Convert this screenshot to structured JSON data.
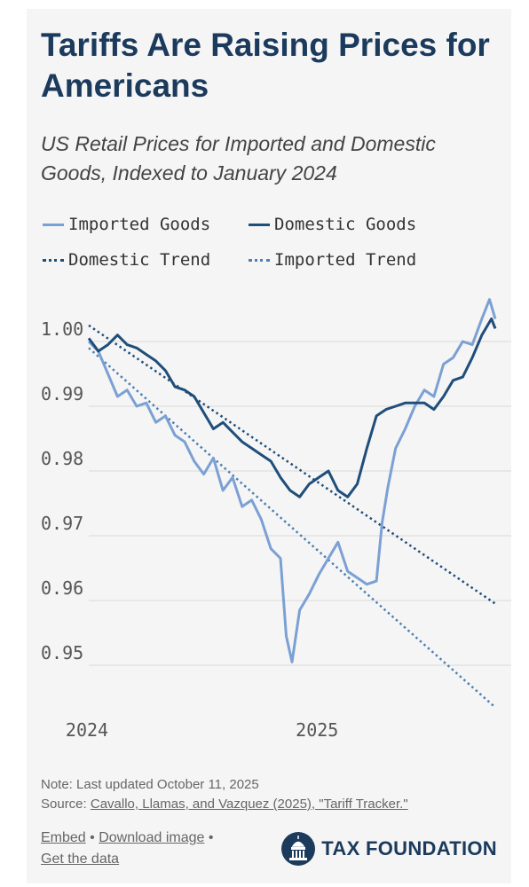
{
  "header": {
    "title": "Tariffs Are Raising Prices for Americans",
    "subtitle": "US Retail Prices for Imported and Domestic Goods, Indexed to January 2024"
  },
  "legend": {
    "items": [
      {
        "label": "Imported Goods",
        "style": "solid",
        "color": "#7ba0d4"
      },
      {
        "label": "Domestic Goods",
        "style": "solid",
        "color": "#1f4e7a"
      },
      {
        "label": "Domestic Trend",
        "style": "dotted",
        "color": "#1f4e7a"
      },
      {
        "label": "Imported Trend",
        "style": "dotted",
        "color": "#4f7fb3"
      }
    ]
  },
  "chart_data": {
    "type": "line",
    "title": "Tariffs Are Raising Prices for Americans",
    "subtitle": "US Retail Prices for Imported and Domestic Goods, Indexed to January 2024",
    "x_ticks": [
      "2024",
      "2025"
    ],
    "y_ticks": [
      "1.00",
      "0.99",
      "0.98",
      "0.97",
      "0.96",
      "0.95"
    ],
    "ylim": [
      0.943,
      1.006
    ],
    "grid": "horizontal",
    "legend_position": "top",
    "x_unit": "months since January 2024",
    "series": [
      {
        "name": "Imported Goods",
        "style": "solid",
        "color": "#7ba0d4",
        "x": [
          0,
          0.5,
          1,
          1.5,
          2,
          2.5,
          3,
          3.5,
          4,
          4.5,
          5,
          5.5,
          6,
          6.5,
          7,
          7.5,
          8,
          8.5,
          9,
          9.5,
          10,
          10.3,
          10.6,
          11,
          11.5,
          12,
          12.5,
          13,
          13.5,
          14,
          14.5,
          15,
          15.3,
          15.6,
          16,
          16.5,
          17,
          17.5,
          18,
          18.5,
          19,
          19.5,
          20,
          20.5,
          20.9,
          21.2
        ],
        "values": [
          1.0,
          0.9985,
          0.995,
          0.9915,
          0.9925,
          0.99,
          0.9905,
          0.9875,
          0.9885,
          0.9855,
          0.9845,
          0.9815,
          0.9795,
          0.982,
          0.977,
          0.979,
          0.9745,
          0.9755,
          0.9725,
          0.968,
          0.9665,
          0.9545,
          0.9505,
          0.9585,
          0.961,
          0.964,
          0.9665,
          0.969,
          0.9645,
          0.9635,
          0.9625,
          0.963,
          0.972,
          0.9775,
          0.9835,
          0.9865,
          0.99,
          0.9925,
          0.9915,
          0.9965,
          0.9975,
          1.0,
          0.9995,
          1.0035,
          1.0065,
          1.0035
        ]
      },
      {
        "name": "Domestic Goods",
        "style": "solid",
        "color": "#1f4e7a",
        "x": [
          0,
          0.5,
          1,
          1.5,
          2,
          2.5,
          3,
          3.5,
          4,
          4.5,
          5,
          5.5,
          6,
          6.5,
          7,
          7.5,
          8,
          8.5,
          9,
          9.5,
          10,
          10.5,
          11,
          11.5,
          12,
          12.5,
          13,
          13.5,
          14,
          14.5,
          15,
          15.5,
          16,
          16.5,
          17,
          17.5,
          18,
          18.5,
          19,
          19.5,
          20,
          20.5,
          21,
          21.2
        ],
        "values": [
          1.0005,
          0.9985,
          0.9995,
          1.001,
          0.9995,
          0.999,
          0.998,
          0.997,
          0.9955,
          0.993,
          0.9925,
          0.9915,
          0.989,
          0.9865,
          0.9875,
          0.986,
          0.9845,
          0.9835,
          0.9825,
          0.9815,
          0.979,
          0.977,
          0.976,
          0.978,
          0.979,
          0.98,
          0.977,
          0.976,
          0.978,
          0.9835,
          0.9885,
          0.9895,
          0.99,
          0.9905,
          0.9905,
          0.9905,
          0.9895,
          0.9915,
          0.994,
          0.9945,
          0.9975,
          1.001,
          1.0035,
          1.002
        ]
      },
      {
        "name": "Domestic Trend",
        "style": "dotted",
        "color": "#1f4e7a",
        "x": [
          0,
          21.2
        ],
        "values": [
          1.0025,
          0.9595
        ]
      },
      {
        "name": "Imported Trend",
        "style": "dotted",
        "color": "#4f7fb3",
        "x": [
          0,
          21.2
        ],
        "values": [
          0.999,
          0.9435
        ]
      }
    ]
  },
  "footer": {
    "note": "Note: Last updated October 11, 2025",
    "source_prefix": "Source: ",
    "source_link": "Cavallo, Llamas, and Vazquez (2025), \"Tariff Tracker.\"",
    "links": [
      "Embed",
      "Download image",
      "Get the data"
    ],
    "separator": "•",
    "brand": "TAX FOUNDATION",
    "brand_icon": "capitol-dome-icon"
  }
}
